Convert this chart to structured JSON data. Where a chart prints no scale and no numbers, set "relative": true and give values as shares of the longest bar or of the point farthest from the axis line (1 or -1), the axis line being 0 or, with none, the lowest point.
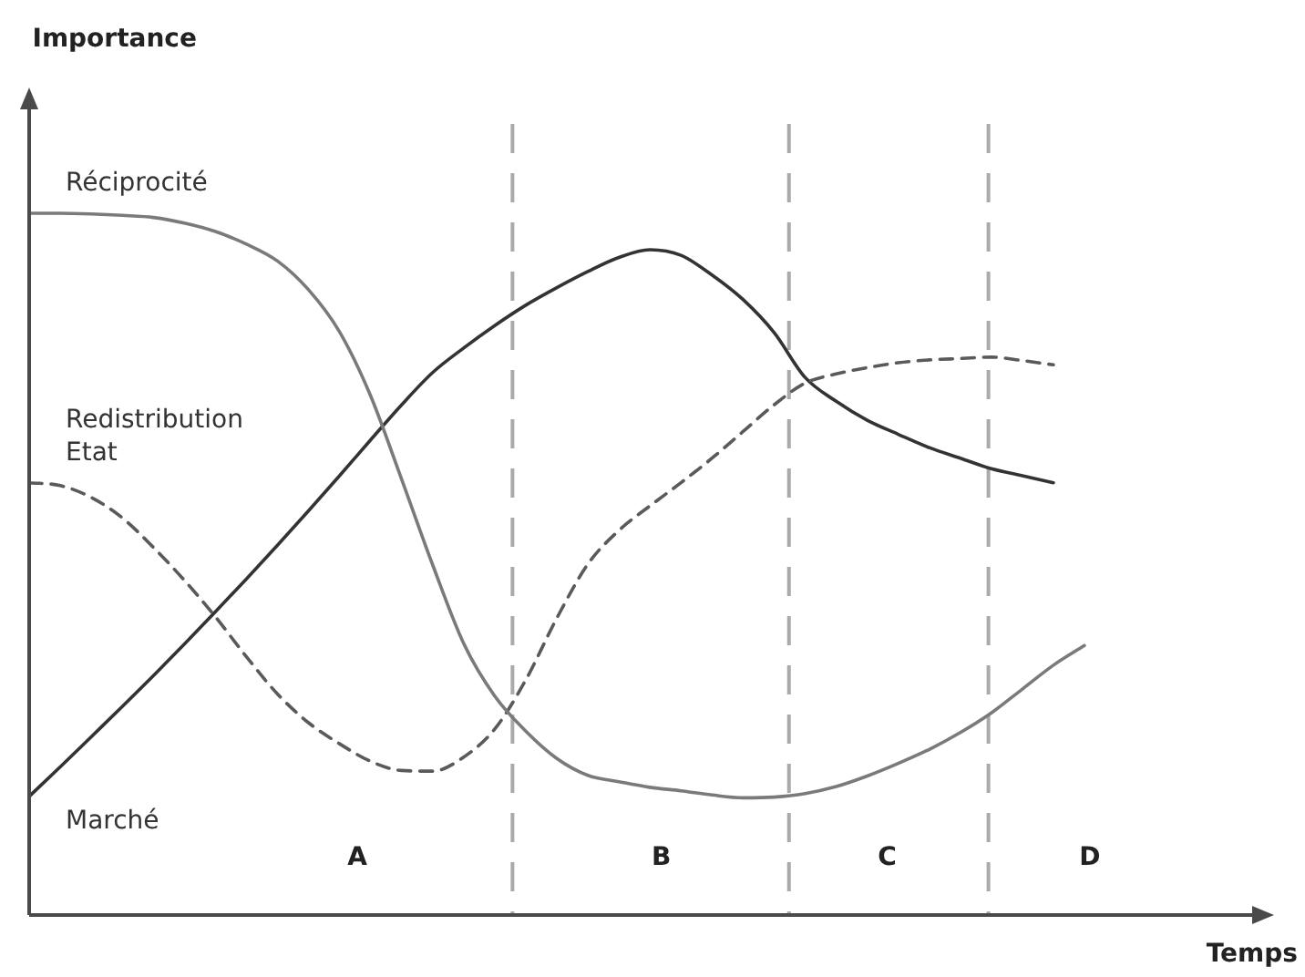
{
  "chart_data": {
    "type": "line",
    "xlabel": "Temps",
    "relative": true,
    "marker": "none",
    "categories": [
      null,
      null,
      null,
      null,
      null,
      null,
      null,
      null,
      null,
      null,
      null,
      null,
      null,
      null,
      null,
      null,
      null,
      null,
      null,
      null,
      null,
      null,
      null,
      null,
      null,
      null,
      null,
      null,
      null,
      null,
      null,
      null,
      null,
      null,
      null
    ],
    "series": [
      {
        "name": "Réciprocité",
        "color": "#7a7a7a",
        "values": [
          1.0,
          1.0,
          0.999,
          0.997,
          0.994,
          0.986,
          0.974,
          0.956,
          0.932,
          0.891,
          0.831,
          0.74,
          0.621,
          0.499,
          0.387,
          0.312,
          0.262,
          0.223,
          0.199,
          0.19,
          0.182,
          0.177,
          0.171,
          0.167,
          0.168,
          0.173,
          0.183,
          0.198,
          0.216,
          0.236,
          0.26,
          0.288,
          0.322,
          0.356,
          0.384
        ]
      },
      {
        "name": "Redistribution\nEtat",
        "color": "#5a5a5a",
        "line_style": "dashed",
        "values": [
          0.616,
          0.612,
          0.595,
          0.566,
          0.524,
          0.477,
          0.425,
          0.368,
          0.315,
          0.274,
          0.244,
          0.219,
          0.206,
          0.205,
          0.225,
          0.265,
          0.335,
          0.423,
          0.5,
          0.548,
          0.583,
          0.616,
          0.651,
          0.689,
          0.727,
          0.758,
          0.771,
          0.78,
          0.787,
          0.791,
          0.793,
          0.795,
          0.79,
          0.784,
          null
        ]
      },
      {
        "name": "Marché",
        "color": "#333333",
        "values": [
          0.169,
          0.211,
          0.254,
          0.297,
          0.341,
          0.386,
          0.432,
          0.479,
          0.527,
          0.576,
          0.626,
          0.677,
          0.727,
          0.773,
          0.808,
          0.84,
          0.869,
          0.894,
          0.917,
          0.937,
          0.948,
          0.94,
          0.912,
          0.877,
          0.83,
          0.766,
          0.732,
          0.705,
          0.685,
          0.666,
          0.651,
          0.636,
          0.626,
          0.616,
          null
        ]
      }
    ],
    "annotations": [
      "Importance",
      "A",
      "B",
      "C",
      "D"
    ]
  }
}
